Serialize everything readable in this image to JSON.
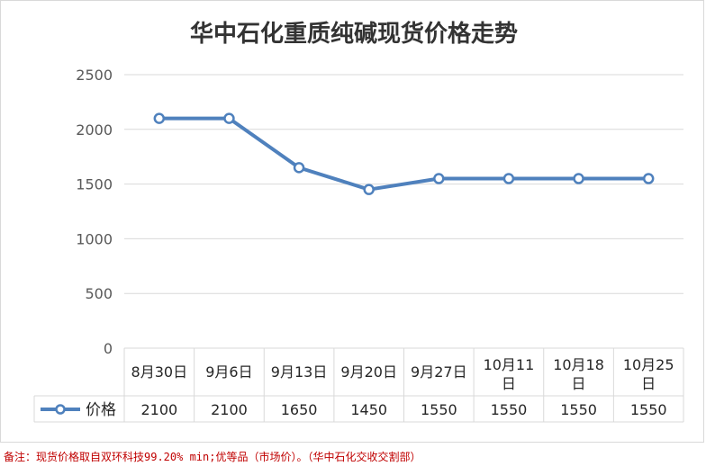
{
  "chart_data": {
    "type": "line",
    "title": "华中石化重质纯碱现货价格走势",
    "categories": [
      "8月30日",
      "9月6日",
      "9月13日",
      "9月20日",
      "9月27日",
      "10月11日",
      "10月18日",
      "10月25日"
    ],
    "series": [
      {
        "name": "价格",
        "values": [
          2100,
          2100,
          1650,
          1450,
          1550,
          1550,
          1550,
          1550
        ],
        "color": "#4f81bd"
      }
    ],
    "y_ticks": [
      "0",
      "500",
      "1000",
      "1500",
      "2000",
      "2500"
    ],
    "ylim": [
      0,
      2500
    ],
    "grid": true,
    "legend": "data-table-left",
    "data_table_values": [
      "2100",
      "2100",
      "1650",
      "1450",
      "1550",
      "1550",
      "1550",
      "1550"
    ]
  },
  "footnote": "备注：现货价格取自双环科技99.20% min;优等品（市场价）。（华中石化交收交割部）"
}
